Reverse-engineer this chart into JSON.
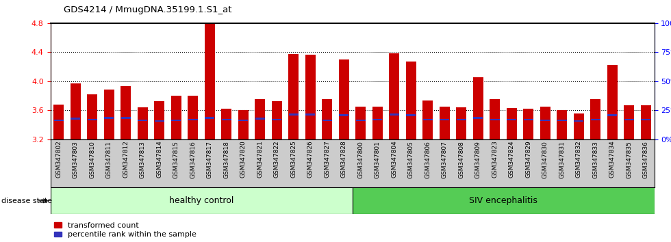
{
  "title": "GDS4214 / MmugDNA.35199.1.S1_at",
  "samples": [
    "GSM347802",
    "GSM347803",
    "GSM347810",
    "GSM347811",
    "GSM347812",
    "GSM347813",
    "GSM347814",
    "GSM347815",
    "GSM347816",
    "GSM347817",
    "GSM347818",
    "GSM347820",
    "GSM347821",
    "GSM347822",
    "GSM347825",
    "GSM347826",
    "GSM347827",
    "GSM347828",
    "GSM347800",
    "GSM347801",
    "GSM347804",
    "GSM347805",
    "GSM347806",
    "GSM347807",
    "GSM347808",
    "GSM347809",
    "GSM347823",
    "GSM347824",
    "GSM347829",
    "GSM347830",
    "GSM347831",
    "GSM347832",
    "GSM347833",
    "GSM347834",
    "GSM347835",
    "GSM347836"
  ],
  "transformed_count": [
    3.68,
    3.97,
    3.82,
    3.88,
    3.93,
    3.64,
    3.72,
    3.8,
    3.8,
    4.8,
    3.62,
    3.6,
    3.75,
    3.72,
    4.37,
    4.36,
    3.75,
    4.3,
    3.65,
    3.65,
    4.38,
    4.27,
    3.73,
    3.65,
    3.64,
    4.05,
    3.75,
    3.63,
    3.62,
    3.65,
    3.6,
    3.55,
    3.75,
    4.22,
    3.67,
    3.67
  ],
  "percentile_y": [
    3.46,
    3.48,
    3.47,
    3.49,
    3.49,
    3.46,
    3.45,
    3.46,
    3.47,
    3.49,
    3.47,
    3.46,
    3.48,
    3.47,
    3.54,
    3.54,
    3.46,
    3.53,
    3.46,
    3.47,
    3.54,
    3.53,
    3.47,
    3.47,
    3.47,
    3.49,
    3.47,
    3.47,
    3.47,
    3.46,
    3.46,
    3.45,
    3.47,
    3.53,
    3.47,
    3.47
  ],
  "bar_bottom": 3.2,
  "ylim_left": [
    3.2,
    4.8
  ],
  "ylim_right": [
    0,
    100
  ],
  "yticks_left": [
    3.2,
    3.6,
    4.0,
    4.4,
    4.8
  ],
  "yticks_right": [
    0,
    25,
    50,
    75,
    100
  ],
  "ytick_labels_right": [
    "0%",
    "25%",
    "50%",
    "75%",
    "100%"
  ],
  "bar_color": "#cc0000",
  "percentile_color": "#3333bb",
  "healthy_control_count": 18,
  "healthy_label": "healthy control",
  "siv_label": "SIV encephalitis",
  "healthy_bg": "#ccffcc",
  "siv_bg": "#55cc55",
  "disease_state_label": "disease state",
  "legend_bar_label": "transformed count",
  "legend_pct_label": "percentile rank within the sample",
  "background_color": "#cccccc"
}
